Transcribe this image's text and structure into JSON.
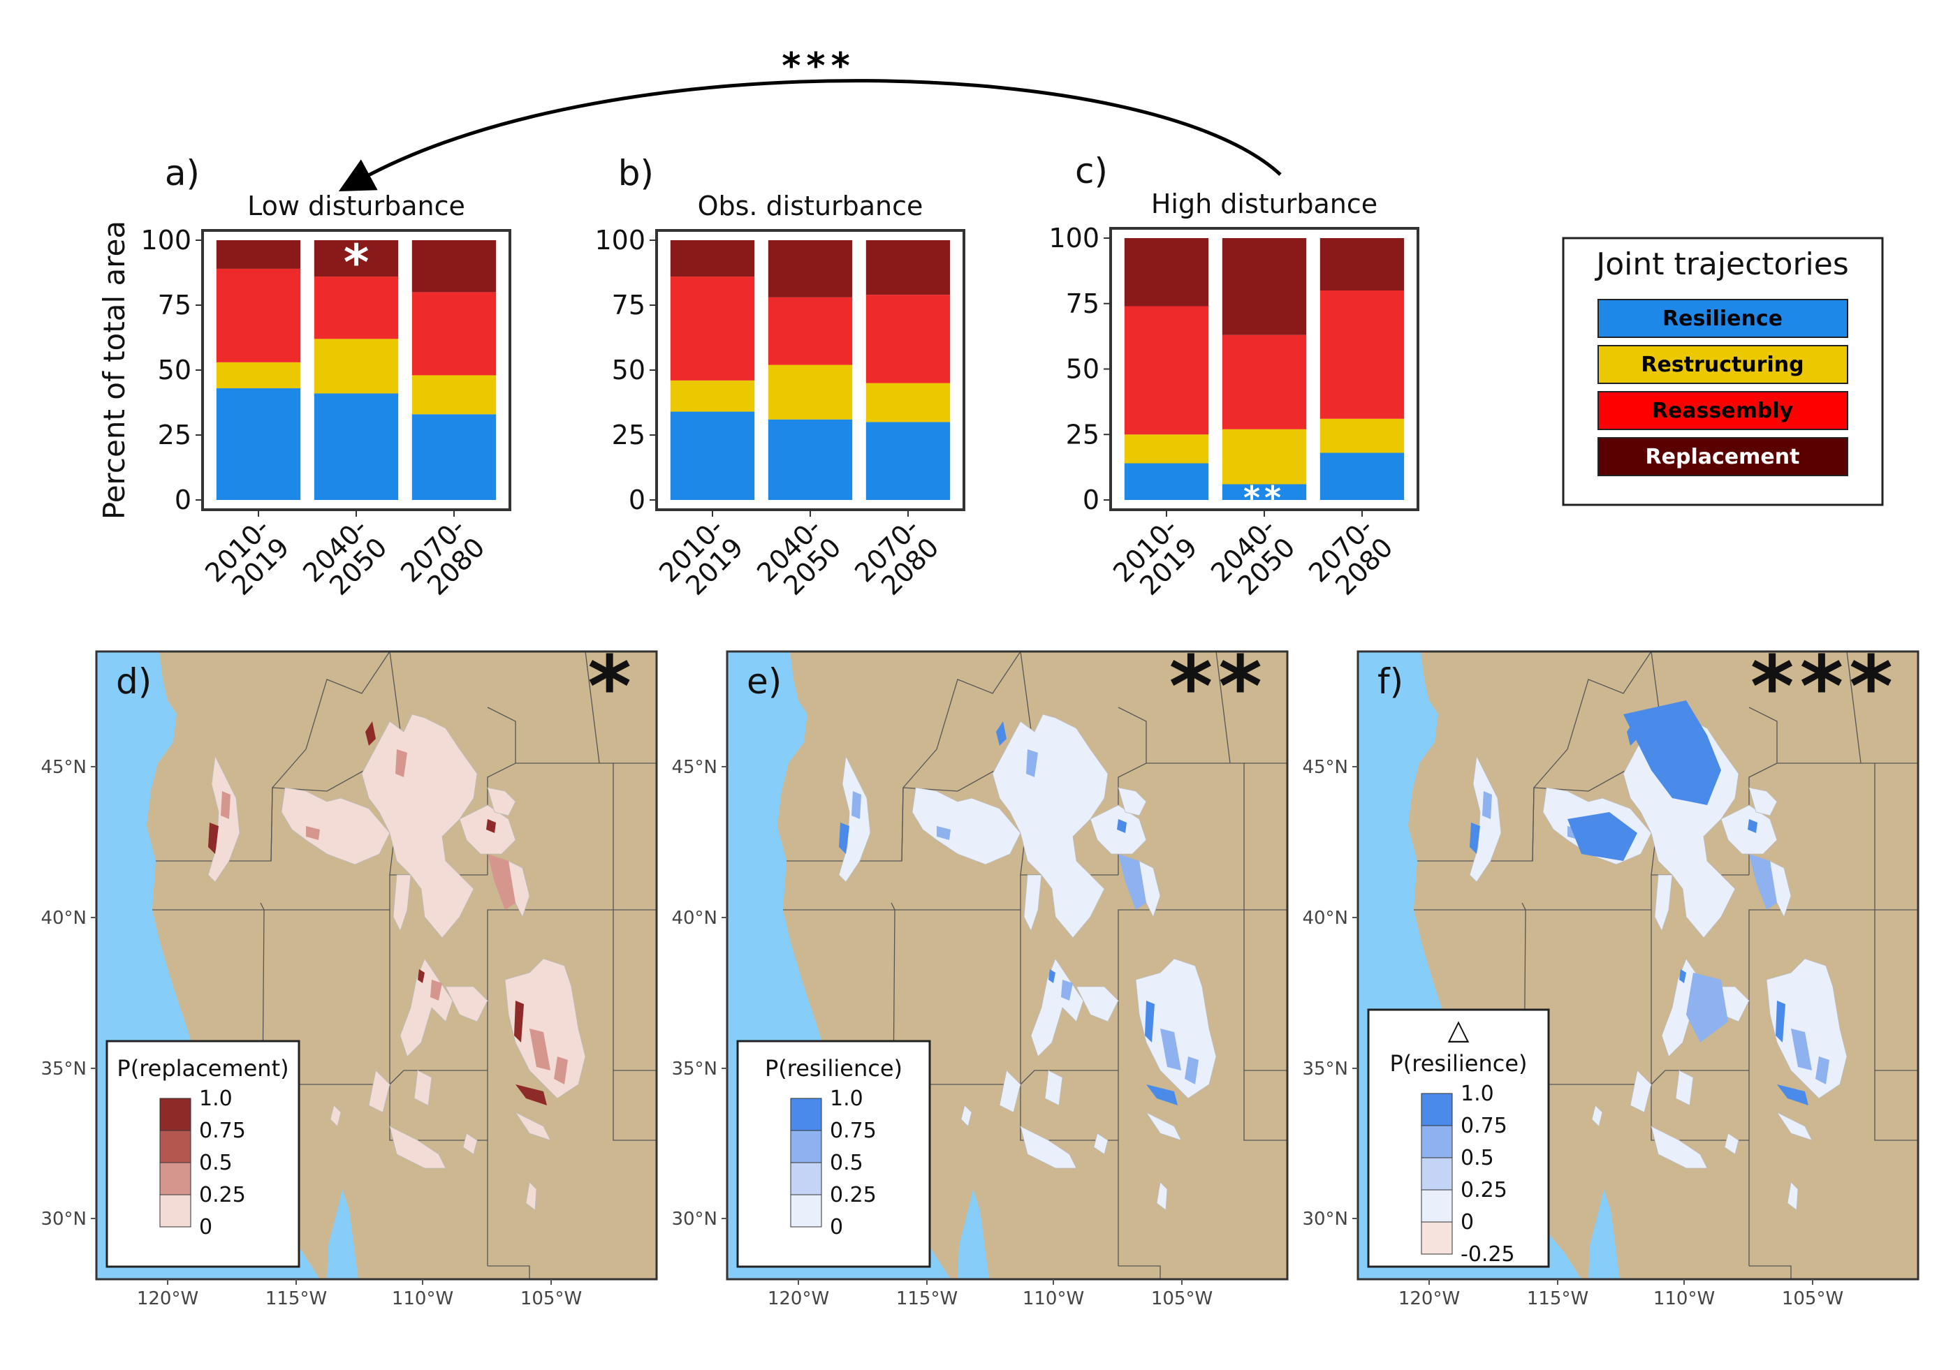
{
  "colors": {
    "resilience": "#1e88e8",
    "restructuring": "#ebc800",
    "reassembly": "#ee2a2a",
    "replacement": "#8a1a1a",
    "ocean": "#87cdfa",
    "land": "#cdb791",
    "map_border": "#333333"
  },
  "top_arrow_label": "***",
  "legend": {
    "title": "Joint trajectories",
    "items": [
      {
        "label": "Resilience",
        "color": "#1e88e8",
        "text_color": "#000000"
      },
      {
        "label": "Restructuring",
        "color": "#ebc800",
        "text_color": "#000000"
      },
      {
        "label": "Reassembly",
        "color": "#ff0000",
        "text_color": "#000000"
      },
      {
        "label": "Replacement",
        "color": "#5a0000",
        "text_color": "#ffffff"
      }
    ]
  },
  "chart_data": [
    {
      "type": "bar",
      "stacked": true,
      "panel": "a)",
      "title": "Low disturbance",
      "ylabel": "Percent of total area",
      "ylim": [
        0,
        100
      ],
      "yticks": [
        "0",
        "25",
        "50",
        "75",
        "100"
      ],
      "categories": [
        "2010-\n2019",
        "2040-\n2050",
        "2070-\n2080"
      ],
      "category_lines": [
        [
          "2010-",
          "2019"
        ],
        [
          "2040-",
          "2050"
        ],
        [
          "2070-",
          "2080"
        ]
      ],
      "series": [
        {
          "name": "Resilience",
          "values": [
            43,
            41,
            33
          ]
        },
        {
          "name": "Restructuring",
          "values": [
            10,
            21,
            15
          ]
        },
        {
          "name": "Reassembly",
          "values": [
            36,
            24,
            32
          ]
        },
        {
          "name": "Replacement",
          "values": [
            11,
            14,
            20
          ]
        }
      ],
      "annotation": {
        "text": "*",
        "category_index": 1,
        "series": "Replacement"
      }
    },
    {
      "type": "bar",
      "stacked": true,
      "panel": "b)",
      "title": "Obs. disturbance",
      "ylim": [
        0,
        100
      ],
      "yticks": [
        "0",
        "25",
        "50",
        "75",
        "100"
      ],
      "categories": [
        "2010-\n2019",
        "2040-\n2050",
        "2070-\n2080"
      ],
      "category_lines": [
        [
          "2010-",
          "2019"
        ],
        [
          "2040-",
          "2050"
        ],
        [
          "2070-",
          "2080"
        ]
      ],
      "series": [
        {
          "name": "Resilience",
          "values": [
            34,
            31,
            30
          ]
        },
        {
          "name": "Restructuring",
          "values": [
            12,
            21,
            15
          ]
        },
        {
          "name": "Reassembly",
          "values": [
            40,
            26,
            34
          ]
        },
        {
          "name": "Replacement",
          "values": [
            14,
            22,
            21
          ]
        }
      ]
    },
    {
      "type": "bar",
      "stacked": true,
      "panel": "c)",
      "title": "High disturbance",
      "ylim": [
        0,
        100
      ],
      "yticks": [
        "0",
        "25",
        "50",
        "75",
        "100"
      ],
      "categories": [
        "2010-\n2019",
        "2040-\n2050",
        "2070-\n2080"
      ],
      "category_lines": [
        [
          "2010-",
          "2019"
        ],
        [
          "2040-",
          "2050"
        ],
        [
          "2070-",
          "2080"
        ]
      ],
      "series": [
        {
          "name": "Resilience",
          "values": [
            14,
            6,
            18
          ]
        },
        {
          "name": "Restructuring",
          "values": [
            11,
            21,
            13
          ]
        },
        {
          "name": "Reassembly",
          "values": [
            49,
            36,
            49
          ]
        },
        {
          "name": "Replacement",
          "values": [
            26,
            37,
            20
          ]
        }
      ],
      "annotation": {
        "text": "**",
        "category_index": 1,
        "series": "Resilience"
      }
    }
  ],
  "maps": [
    {
      "panel": "d)",
      "stars": "*",
      "legend_title": "P(replacement)",
      "legend_title_prefix": "",
      "legend_labels": [
        "1.0",
        "0.75",
        "0.5",
        "0.25",
        "0"
      ],
      "legend_colors": [
        "#8e2a27",
        "#b4574f",
        "#d4968d",
        "#f3dcd6"
      ],
      "fill_main": "#f3dcd6",
      "fill_mid": "#d4968d",
      "fill_dark": "#8e2a27"
    },
    {
      "panel": "e)",
      "stars": "**",
      "legend_title": "P(resilience)",
      "legend_title_prefix": "",
      "legend_labels": [
        "1.0",
        "0.75",
        "0.5",
        "0.25",
        "0"
      ],
      "legend_colors": [
        "#4a8ae8",
        "#8eb1f0",
        "#c4d4f6",
        "#e9effb"
      ],
      "fill_main": "#e9effb",
      "fill_mid": "#8eb1f0",
      "fill_dark": "#4a8ae8"
    },
    {
      "panel": "f)",
      "stars": "***",
      "legend_title": "P(resilience)",
      "legend_title_prefix": "△",
      "legend_labels": [
        "1.0",
        "0.75",
        "0.5",
        "0.25",
        "0",
        "-0.25"
      ],
      "legend_colors": [
        "#4a8ae8",
        "#8eb1f0",
        "#c4d4f6",
        "#e9effb",
        "#f6e3dd"
      ],
      "fill_main": "#e9effb",
      "fill_mid": "#8eb1f0",
      "fill_dark": "#4a8ae8"
    }
  ],
  "map_axes": {
    "lat_labels": [
      "45°N",
      "40°N",
      "35°N",
      "30°N"
    ],
    "lon_labels": [
      "120°W",
      "115°W",
      "110°W",
      "105°W"
    ]
  }
}
